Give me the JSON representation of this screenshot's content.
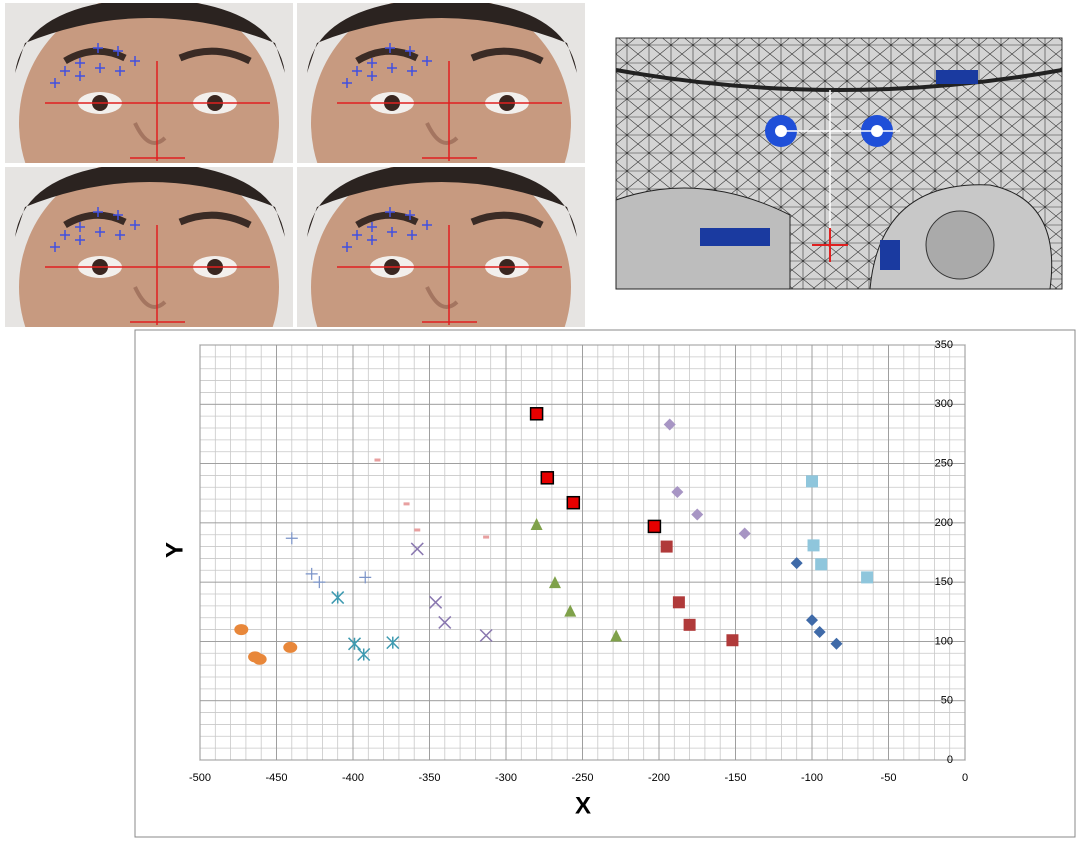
{
  "chart_data": {
    "type": "scatter",
    "xlabel": "X",
    "ylabel": "Y",
    "xlim": [
      -500,
      0
    ],
    "ylim": [
      0,
      350
    ],
    "xticks": [
      -500,
      -450,
      -400,
      -350,
      -300,
      -250,
      -200,
      -150,
      -100,
      -50,
      0
    ],
    "yticks": [
      0,
      50,
      100,
      150,
      200,
      250,
      300,
      350
    ],
    "grid": true,
    "series": [
      {
        "color": "#3f6aa8",
        "marker": "diamond",
        "x": [
          -110,
          -100,
          -95,
          -84
        ],
        "values": [
          166,
          118,
          108,
          98
        ]
      },
      {
        "color": "#8fc6dc",
        "marker": "square",
        "x": [
          -100,
          -99,
          -94,
          -64
        ],
        "values": [
          235,
          181,
          165,
          154
        ]
      },
      {
        "color": "#a795c4",
        "marker": "diamond",
        "x": [
          -193,
          -188,
          -175,
          -144
        ],
        "values": [
          283,
          226,
          207,
          191
        ]
      },
      {
        "color": "#b03a3a",
        "marker": "square",
        "x": [
          -195,
          -187,
          -180,
          -152
        ],
        "values": [
          180,
          133,
          114,
          101
        ]
      },
      {
        "color": "#e60000",
        "marker": "square-edge",
        "x": [
          -280,
          -273,
          -256,
          -203
        ],
        "values": [
          292,
          238,
          217,
          197
        ]
      },
      {
        "color": "#7fa14a",
        "marker": "triangle",
        "x": [
          -280,
          -268,
          -258,
          -228
        ],
        "values": [
          199,
          150,
          126,
          105
        ]
      },
      {
        "color": "#8a78b0",
        "marker": "x",
        "x": [
          -358,
          -346,
          -340,
          -313
        ],
        "values": [
          178,
          133,
          116,
          105
        ]
      },
      {
        "color": "#e8a0a0",
        "marker": "dash",
        "x": [
          -384,
          -365,
          -358,
          -313
        ],
        "values": [
          253,
          216,
          194,
          188
        ]
      },
      {
        "color": "#3e9ab0",
        "marker": "asterisk",
        "x": [
          -410,
          -399,
          -393,
          -374
        ],
        "values": [
          137,
          98,
          89,
          99
        ]
      },
      {
        "color": "#7a93c8",
        "marker": "plus",
        "x": [
          -440,
          -427,
          -422,
          -392
        ],
        "values": [
          187,
          157,
          150,
          154
        ]
      },
      {
        "color": "#e8873a",
        "marker": "circle",
        "x": [
          -473,
          -464,
          -461,
          -441
        ],
        "values": [
          110,
          87,
          85,
          95
        ]
      }
    ]
  }
}
